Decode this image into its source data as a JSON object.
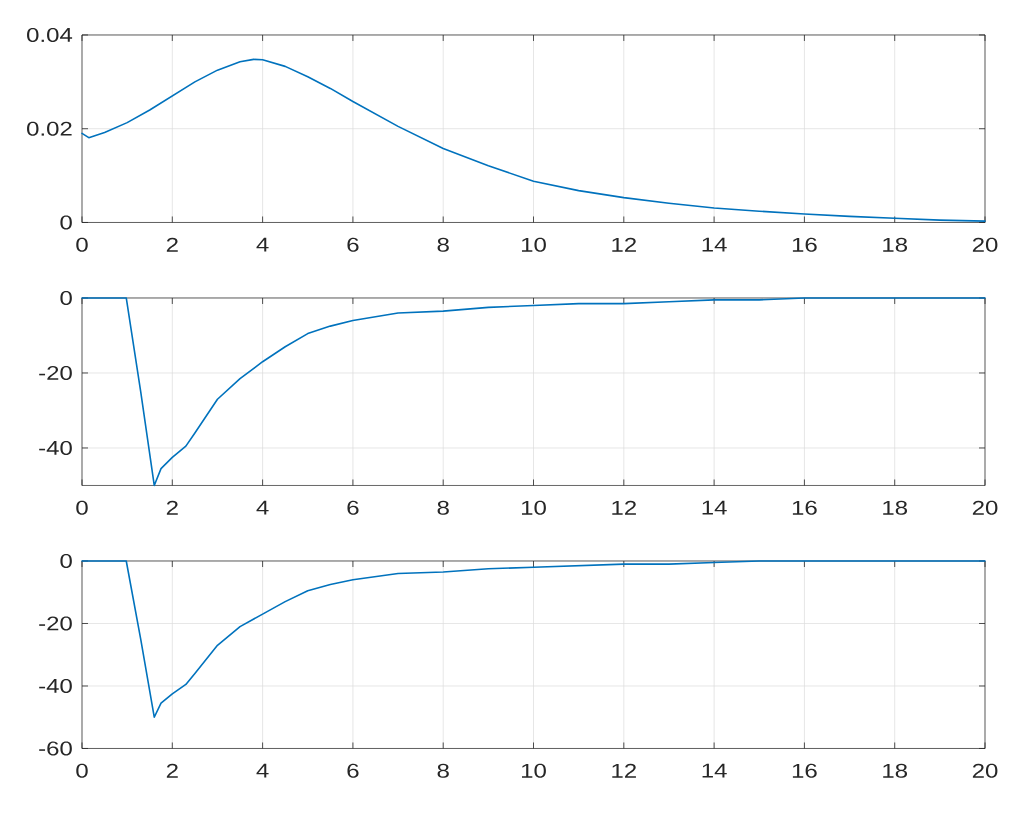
{
  "chart_data": [
    {
      "type": "line",
      "x": [
        0,
        0.15,
        0.5,
        1,
        1.5,
        2,
        2.5,
        3,
        3.5,
        3.8,
        4,
        4.5,
        5,
        5.5,
        6,
        7,
        8,
        9,
        10,
        11,
        12,
        13,
        14,
        15,
        16,
        17,
        18,
        19,
        20
      ],
      "values": [
        0.019,
        0.0181,
        0.0192,
        0.0213,
        0.024,
        0.027,
        0.03,
        0.0325,
        0.0343,
        0.0348,
        0.0347,
        0.0333,
        0.0311,
        0.0286,
        0.0258,
        0.0205,
        0.0158,
        0.0121,
        0.0088,
        0.0068,
        0.0053,
        0.0041,
        0.0031,
        0.0024,
        0.0018,
        0.0013,
        0.0009,
        0.0005,
        0.0003
      ],
      "color": "#0072bd",
      "xlim": [
        0,
        20
      ],
      "ylim": [
        0,
        0.04
      ],
      "xticks": [
        0,
        2,
        4,
        6,
        8,
        10,
        12,
        14,
        16,
        18,
        20
      ],
      "yticks": [
        0,
        0.02,
        0.04
      ],
      "grid": true
    },
    {
      "type": "line",
      "x": [
        0,
        0.98,
        1.3,
        1.6,
        1.75,
        2,
        2.3,
        2.5,
        3,
        3.5,
        4,
        4.5,
        5,
        5.5,
        6,
        7,
        8,
        9,
        10,
        11,
        12,
        13,
        14,
        15,
        16,
        17,
        18,
        19,
        20
      ],
      "values": [
        0,
        0,
        -25,
        -50,
        -45.5,
        -42.5,
        -39.5,
        -36,
        -27,
        -21.5,
        -17,
        -13,
        -9.5,
        -7.5,
        -6,
        -4,
        -3.5,
        -2.5,
        -2,
        -1.5,
        -1.5,
        -1,
        -0.5,
        -0.5,
        0,
        0,
        0,
        0,
        0
      ],
      "color": "#0072bd",
      "xlim": [
        0,
        20
      ],
      "ylim": [
        -50,
        0
      ],
      "xticks": [
        0,
        2,
        4,
        6,
        8,
        10,
        12,
        14,
        16,
        18,
        20
      ],
      "yticks": [
        -40,
        -20,
        0
      ],
      "grid": true
    },
    {
      "type": "line",
      "x": [
        0,
        0.98,
        1.3,
        1.6,
        1.75,
        2,
        2.3,
        2.5,
        3,
        3.5,
        4,
        4.5,
        5,
        5.5,
        6,
        7,
        8,
        9,
        10,
        11,
        12,
        13,
        14,
        15,
        16,
        17,
        18,
        19,
        20
      ],
      "values": [
        0,
        0,
        -25,
        -50,
        -45.5,
        -42.5,
        -39.5,
        -36,
        -27,
        -21,
        -17,
        -13,
        -9.5,
        -7.5,
        -6,
        -4,
        -3.5,
        -2.5,
        -2,
        -1.5,
        -1,
        -1,
        -0.5,
        0,
        0,
        0,
        0,
        0,
        0
      ],
      "color": "#0072bd",
      "xlim": [
        0,
        20
      ],
      "ylim": [
        -60,
        0
      ],
      "xticks": [
        0,
        2,
        4,
        6,
        8,
        10,
        12,
        14,
        16,
        18,
        20
      ],
      "yticks": [
        -60,
        -40,
        -20,
        0
      ],
      "grid": true
    }
  ]
}
